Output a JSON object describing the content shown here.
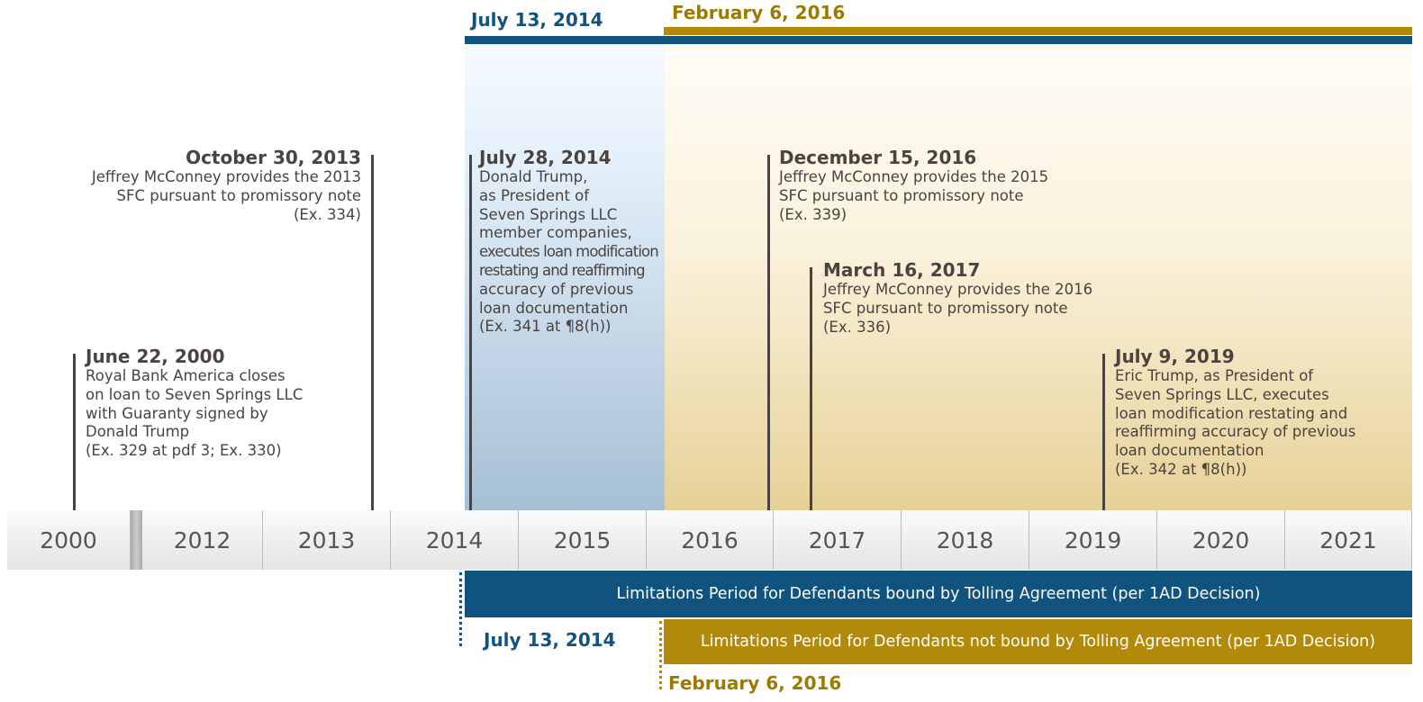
{
  "top_markers": [
    {
      "label": "July 13, 2014"
    },
    {
      "label": "February 6, 2016"
    }
  ],
  "events": [
    {
      "date": "June 22, 2000",
      "lines": [
        "Royal Bank America closes",
        "on loan to Seven Springs LLC",
        "with Guaranty signed by",
        "Donald Trump",
        "(Ex. 329 at pdf 3; Ex. 330)"
      ]
    },
    {
      "date": "October 30, 2013",
      "lines": [
        "Jeffrey McConney provides the 2013",
        "SFC pursuant to promissory note",
        "(Ex. 334)"
      ]
    },
    {
      "date": "July 28, 2014",
      "lines": [
        "Donald Trump,",
        "as President of",
        "Seven Springs LLC",
        "member companies,",
        "executes loan modification",
        "restating and reaffirming",
        "accuracy of previous",
        "loan documentation",
        "(Ex. 341 at ¶8(h))"
      ]
    },
    {
      "date": "December 15, 2016",
      "lines": [
        "Jeffrey McConney provides the 2015",
        "SFC pursuant to promissory note",
        "(Ex. 339)"
      ]
    },
    {
      "date": "March 16, 2017",
      "lines": [
        "Jeffrey McConney provides the 2016",
        "SFC pursuant to promissory note",
        "(Ex. 336)"
      ]
    },
    {
      "date": "July 9, 2019",
      "lines": [
        "Eric Trump, as President of",
        "Seven Springs LLC, executes",
        "loan modification restating and",
        "reaffirming accuracy of previous",
        "loan documentation",
        "(Ex. 342 at ¶8(h))"
      ]
    }
  ],
  "years": [
    "2000",
    "2012",
    "2013",
    "2014",
    "2015",
    "2016",
    "2017",
    "2018",
    "2019",
    "2020",
    "2021"
  ],
  "periods": [
    {
      "text": "Limitations Period for Defendants bound by Tolling Agreement (per 1AD Decision)",
      "date": "July 13, 2014"
    },
    {
      "text": "Limitations Period for Defendants not bound by Tolling Agreement (per 1AD Decision)",
      "date": "February 6, 2016"
    }
  ]
}
